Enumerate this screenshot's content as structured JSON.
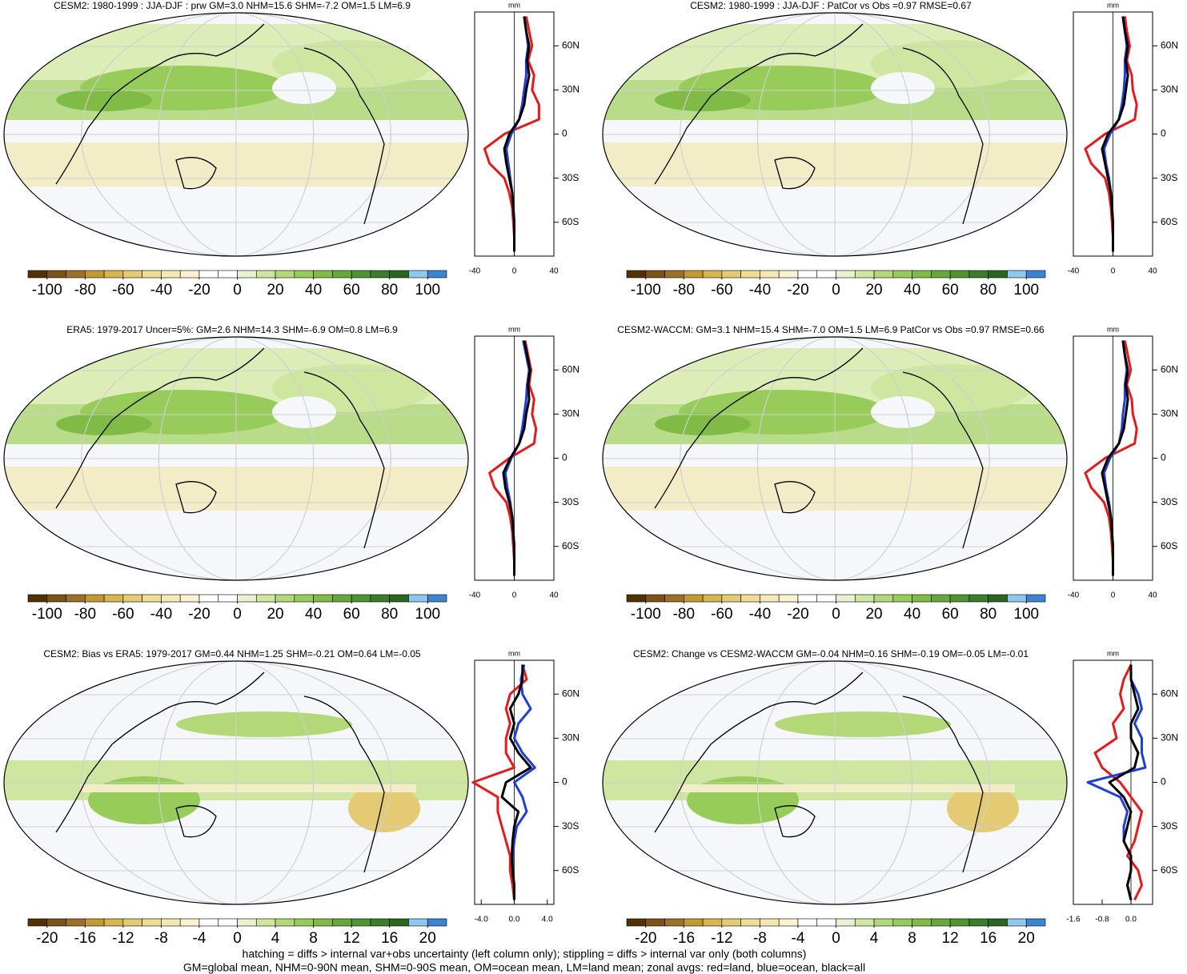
{
  "chart_data": [
    {
      "type": "map",
      "title": "CESM2: 1980-1999 : JJA-DJF : prw GM=3.0 NHM=15.6 SHM=-7.2 OM=1.5 LM=6.9",
      "colorbar": {
        "range": [
          -110,
          110
        ],
        "ticks": [
          -100,
          -80,
          -60,
          -40,
          -20,
          0,
          20,
          40,
          60,
          80,
          100
        ],
        "colors": [
          "#543005",
          "#7b5317",
          "#9d6f27",
          "#c39a32",
          "#d7b550",
          "#e4cb73",
          "#efdc95",
          "#f4e8b4",
          "#f8f1d2",
          "#ffffff",
          "#ffffff",
          "#e9f2d0",
          "#cfe6a0",
          "#b2d878",
          "#98cc5a",
          "#7fbb45",
          "#66a83a",
          "#4f9432",
          "#3b7d2a",
          "#2b6620",
          "#8ec8f0",
          "#3a84d0"
        ]
      },
      "zonal": {
        "type": "line",
        "xlabel": "mm",
        "xlim": [
          -40,
          40
        ],
        "xticks": [
          -40,
          0,
          40
        ],
        "ylim": [
          -83,
          83
        ],
        "yticks": [
          {
            "value": 60,
            "label": "60N"
          },
          {
            "value": 30,
            "label": "30N"
          },
          0,
          {
            "value": -30,
            "label": "30S"
          },
          {
            "value": -60,
            "label": "60S"
          }
        ],
        "y": [
          80,
          70,
          60,
          50,
          40,
          30,
          20,
          10,
          0,
          -10,
          -20,
          -30,
          -40,
          -50,
          -60,
          -70,
          -80
        ],
        "series": [
          {
            "color": "#e41a1c",
            "values": [
              12,
              15,
              18,
              14,
              20,
              18,
              25,
              25,
              -10,
              -30,
              -25,
              -10,
              -5,
              -2,
              -1,
              0,
              0
            ]
          },
          {
            "color": "#1f3fd6",
            "values": [
              10,
              12,
              14,
              12,
              12,
              10,
              8,
              5,
              -3,
              -8,
              -6,
              -4,
              -2,
              -1,
              0,
              0,
              0
            ]
          },
          {
            "color": "#000000",
            "values": [
              10,
              12,
              15,
              13,
              15,
              12,
              10,
              5,
              -5,
              -10,
              -8,
              -5,
              -2,
              -1,
              0,
              0,
              0
            ]
          }
        ]
      }
    },
    {
      "type": "map",
      "title": "CESM2: 1980-1999 : JJA-DJF : PatCor vs Obs =0.97 RMSE=0.67",
      "colorbar": {
        "range": [
          -110,
          110
        ],
        "ticks": [
          -100,
          -80,
          -60,
          -40,
          -20,
          0,
          20,
          40,
          60,
          80,
          100
        ],
        "colors": [
          "#543005",
          "#7b5317",
          "#9d6f27",
          "#c39a32",
          "#d7b550",
          "#e4cb73",
          "#efdc95",
          "#f4e8b4",
          "#f8f1d2",
          "#ffffff",
          "#ffffff",
          "#e9f2d0",
          "#cfe6a0",
          "#b2d878",
          "#98cc5a",
          "#7fbb45",
          "#66a83a",
          "#4f9432",
          "#3b7d2a",
          "#2b6620",
          "#8ec8f0",
          "#3a84d0"
        ]
      },
      "zonal": {
        "type": "line",
        "xlabel": "mm",
        "xlim": [
          -40,
          40
        ],
        "xticks": [
          -40,
          0,
          40
        ],
        "ylim": [
          -83,
          83
        ],
        "yticks": [
          {
            "value": 60,
            "label": "60N"
          },
          {
            "value": 30,
            "label": "30N"
          },
          0,
          {
            "value": -30,
            "label": "30S"
          },
          {
            "value": -60,
            "label": "60S"
          }
        ],
        "y": [
          80,
          70,
          60,
          50,
          40,
          30,
          20,
          10,
          0,
          -10,
          -20,
          -30,
          -40,
          -50,
          -60,
          -70,
          -80
        ],
        "series": [
          {
            "color": "#e41a1c",
            "values": [
              12,
              14,
              17,
              14,
              19,
              20,
              24,
              22,
              -8,
              -28,
              -22,
              -8,
              -4,
              -2,
              -1,
              0,
              0
            ]
          },
          {
            "color": "#1f3fd6",
            "values": [
              10,
              12,
              14,
              12,
              12,
              11,
              9,
              6,
              -3,
              -9,
              -7,
              -4,
              -2,
              -1,
              0,
              0,
              0
            ]
          },
          {
            "color": "#000000",
            "values": [
              10,
              12,
              15,
              13,
              15,
              13,
              11,
              6,
              -5,
              -11,
              -8,
              -5,
              -2,
              -1,
              0,
              0,
              0
            ]
          }
        ]
      }
    },
    {
      "type": "map",
      "title": "ERA5: 1979-2017 Uncer=5%: GM=2.6 NHM=14.3 SHM=-6.9 OM=0.8 LM=6.9",
      "colorbar": {
        "range": [
          -110,
          110
        ],
        "ticks": [
          -100,
          -80,
          -60,
          -40,
          -20,
          0,
          20,
          40,
          60,
          80,
          100
        ],
        "colors": [
          "#543005",
          "#7b5317",
          "#9d6f27",
          "#c39a32",
          "#d7b550",
          "#e4cb73",
          "#efdc95",
          "#f4e8b4",
          "#f8f1d2",
          "#ffffff",
          "#ffffff",
          "#e9f2d0",
          "#cfe6a0",
          "#b2d878",
          "#98cc5a",
          "#7fbb45",
          "#66a83a",
          "#4f9432",
          "#3b7d2a",
          "#2b6620",
          "#8ec8f0",
          "#3a84d0"
        ]
      },
      "zonal": {
        "type": "line",
        "xlabel": "mm",
        "xlim": [
          -40,
          40
        ],
        "xticks": [
          -40,
          0,
          40
        ],
        "ylim": [
          -83,
          83
        ],
        "yticks": [
          {
            "value": 60,
            "label": "60N"
          },
          {
            "value": 30,
            "label": "30N"
          },
          0,
          {
            "value": -30,
            "label": "30S"
          },
          {
            "value": -60,
            "label": "60S"
          }
        ],
        "y": [
          80,
          70,
          60,
          50,
          40,
          30,
          20,
          10,
          0,
          -10,
          -20,
          -30,
          -40,
          -50,
          -60,
          -70,
          -80
        ],
        "series": [
          {
            "color": "#e41a1c",
            "values": [
              11,
              14,
              17,
              15,
              20,
              18,
              22,
              20,
              -5,
              -25,
              -20,
              -8,
              -4,
              -2,
              -1,
              0,
              0
            ]
          },
          {
            "color": "#1f3fd6",
            "values": [
              9,
              12,
              15,
              13,
              12,
              10,
              8,
              5,
              -3,
              -9,
              -7,
              -4,
              -2,
              -1,
              0,
              0,
              0
            ]
          },
          {
            "color": "#000000",
            "values": [
              10,
              13,
              16,
              14,
              15,
              12,
              10,
              5,
              -4,
              -11,
              -9,
              -5,
              -2,
              -1,
              0,
              0,
              0
            ]
          }
        ]
      }
    },
    {
      "type": "map",
      "title": "CESM2-WACCM: GM=3.1 NHM=15.4 SHM=-7.0 OM=1.5 LM=6.9 PatCor vs Obs =0.97 RMSE=0.66",
      "colorbar": {
        "range": [
          -110,
          110
        ],
        "ticks": [
          -100,
          -80,
          -60,
          -40,
          -20,
          0,
          20,
          40,
          60,
          80,
          100
        ],
        "colors": [
          "#543005",
          "#7b5317",
          "#9d6f27",
          "#c39a32",
          "#d7b550",
          "#e4cb73",
          "#efdc95",
          "#f4e8b4",
          "#f8f1d2",
          "#ffffff",
          "#ffffff",
          "#e9f2d0",
          "#cfe6a0",
          "#b2d878",
          "#98cc5a",
          "#7fbb45",
          "#66a83a",
          "#4f9432",
          "#3b7d2a",
          "#2b6620",
          "#8ec8f0",
          "#3a84d0"
        ]
      },
      "zonal": {
        "type": "line",
        "xlabel": "mm",
        "xlim": [
          -40,
          40
        ],
        "xticks": [
          -40,
          0,
          40
        ],
        "ylim": [
          -83,
          83
        ],
        "yticks": [
          {
            "value": 60,
            "label": "60N"
          },
          {
            "value": 30,
            "label": "30N"
          },
          0,
          {
            "value": -30,
            "label": "30S"
          },
          {
            "value": -60,
            "label": "60S"
          }
        ],
        "y": [
          80,
          70,
          60,
          50,
          40,
          30,
          20,
          10,
          0,
          -10,
          -20,
          -30,
          -40,
          -50,
          -60,
          -70,
          -80
        ],
        "series": [
          {
            "color": "#e41a1c",
            "values": [
              12,
              15,
              18,
              14,
              19,
              20,
              24,
              22,
              -8,
              -28,
              -22,
              -9,
              -4,
              -2,
              -1,
              0,
              0
            ]
          },
          {
            "color": "#1f3fd6",
            "values": [
              10,
              12,
              14,
              12,
              12,
              10,
              9,
              6,
              -3,
              -9,
              -7,
              -4,
              -2,
              -1,
              0,
              0,
              0
            ]
          },
          {
            "color": "#000000",
            "values": [
              10,
              12,
              15,
              13,
              15,
              13,
              11,
              6,
              -5,
              -11,
              -8,
              -5,
              -2,
              -1,
              0,
              0,
              0
            ]
          }
        ]
      }
    },
    {
      "type": "map",
      "title": "CESM2: Bias vs ERA5: 1979-2017 GM=0.44 NHM=1.25 SHM=-0.21 OM=0.64 LM=-0.05",
      "colorbar": {
        "range": [
          -22,
          22
        ],
        "ticks": [
          -20,
          -16,
          -12,
          -8,
          -4,
          0,
          4,
          8,
          12,
          16,
          20
        ],
        "colors": [
          "#543005",
          "#7b5317",
          "#9d6f27",
          "#c39a32",
          "#d7b550",
          "#e4cb73",
          "#efdc95",
          "#f4e8b4",
          "#f8f1d2",
          "#ffffff",
          "#ffffff",
          "#e9f2d0",
          "#cfe6a0",
          "#b2d878",
          "#98cc5a",
          "#7fbb45",
          "#66a83a",
          "#4f9432",
          "#3b7d2a",
          "#2b6620",
          "#8ec8f0",
          "#3a84d0"
        ]
      },
      "zonal": {
        "type": "line",
        "xlabel": "mm",
        "xlim": [
          -4.8,
          4.8
        ],
        "xticks": [
          {
            "value": -4,
            "label": "-4.0"
          },
          {
            "value": 0,
            "label": "0.0"
          },
          {
            "value": 4,
            "label": "4.0"
          }
        ],
        "ylim": [
          -83,
          83
        ],
        "yticks": [
          {
            "value": 60,
            "label": "60N"
          },
          {
            "value": 30,
            "label": "30N"
          },
          0,
          {
            "value": -30,
            "label": "30S"
          },
          {
            "value": -60,
            "label": "60S"
          }
        ],
        "y": [
          80,
          70,
          60,
          50,
          40,
          30,
          20,
          10,
          0,
          -10,
          -20,
          -30,
          -40,
          -50,
          -60,
          -70,
          -80
        ],
        "series": [
          {
            "color": "#e41a1c",
            "values": [
              1,
              1.5,
              -0.5,
              -1,
              -0.5,
              -1,
              -1,
              0,
              -5,
              -2,
              -2,
              -1.5,
              -1,
              -0.5,
              -0.5,
              -0.2,
              0
            ]
          },
          {
            "color": "#1f3fd6",
            "values": [
              1.2,
              0.8,
              1,
              2,
              0.5,
              0,
              1,
              2.5,
              0,
              1,
              1.5,
              0.3,
              0,
              -0.2,
              -0.2,
              0,
              0
            ]
          },
          {
            "color": "#000000",
            "values": [
              1,
              1,
              0.5,
              -0.5,
              0,
              -0.5,
              0.5,
              2,
              -1,
              -1.5,
              0.5,
              0,
              -0.2,
              -0.3,
              -0.2,
              0,
              0
            ]
          }
        ]
      }
    },
    {
      "type": "map",
      "title": "CESM2: Change vs CESM2-WACCM GM=-0.04 NHM=0.16 SHM=-0.19 OM=-0.05 LM=-0.01",
      "colorbar": {
        "range": [
          -22,
          22
        ],
        "ticks": [
          -20,
          -16,
          -12,
          -8,
          -4,
          0,
          4,
          8,
          12,
          16,
          20
        ],
        "colors": [
          "#543005",
          "#7b5317",
          "#9d6f27",
          "#c39a32",
          "#d7b550",
          "#e4cb73",
          "#efdc95",
          "#f4e8b4",
          "#f8f1d2",
          "#ffffff",
          "#ffffff",
          "#e9f2d0",
          "#cfe6a0",
          "#b2d878",
          "#98cc5a",
          "#7fbb45",
          "#66a83a",
          "#4f9432",
          "#3b7d2a",
          "#2b6620",
          "#8ec8f0",
          "#3a84d0"
        ]
      },
      "zonal": {
        "type": "line",
        "xlabel": "mm",
        "xlim": [
          -1.6,
          0.6
        ],
        "xticks": [
          {
            "value": -1.6,
            "label": "-1.6"
          },
          {
            "value": -0.8,
            "label": "-0.8"
          },
          {
            "value": 0,
            "label": "0.0"
          }
        ],
        "ylim": [
          -83,
          83
        ],
        "yticks": [
          {
            "value": 60,
            "label": "60N"
          },
          {
            "value": 30,
            "label": "30N"
          },
          0,
          {
            "value": -30,
            "label": "30S"
          },
          {
            "value": -60,
            "label": "60S"
          }
        ],
        "y": [
          80,
          70,
          60,
          50,
          40,
          30,
          20,
          10,
          0,
          -10,
          -20,
          -30,
          -40,
          -50,
          -60,
          -70,
          -80
        ],
        "series": [
          {
            "color": "#e41a1c",
            "values": [
              0,
              -0.2,
              -0.3,
              -0.2,
              -0.5,
              -0.4,
              -1,
              -0.8,
              -0.3,
              0,
              0.3,
              0.2,
              0.1,
              -0.1,
              0.2,
              0.3,
              0.1
            ]
          },
          {
            "color": "#1f3fd6",
            "values": [
              0,
              0,
              0.2,
              0.3,
              0.1,
              0.3,
              0.3,
              0.4,
              -1.2,
              -0.3,
              -0.1,
              -0.2,
              -0.2,
              0,
              0,
              -0.1,
              0
            ]
          },
          {
            "color": "#000000",
            "values": [
              0,
              0,
              0.1,
              0.2,
              0,
              0,
              0.2,
              0.1,
              -0.6,
              -0.2,
              0,
              -0.1,
              -0.2,
              0,
              0,
              -0.1,
              0
            ]
          }
        ]
      }
    }
  ],
  "notes": [
    "hatching = diffs > internal var+obs uncertainty (left column only); stippling = diffs > internal var only (both columns)",
    "GM=global mean, NHM=0-90N mean, SHM=0-90S mean, OM=ocean mean, LM=land mean; zonal avgs: red=land, blue=ocean, black=all"
  ]
}
